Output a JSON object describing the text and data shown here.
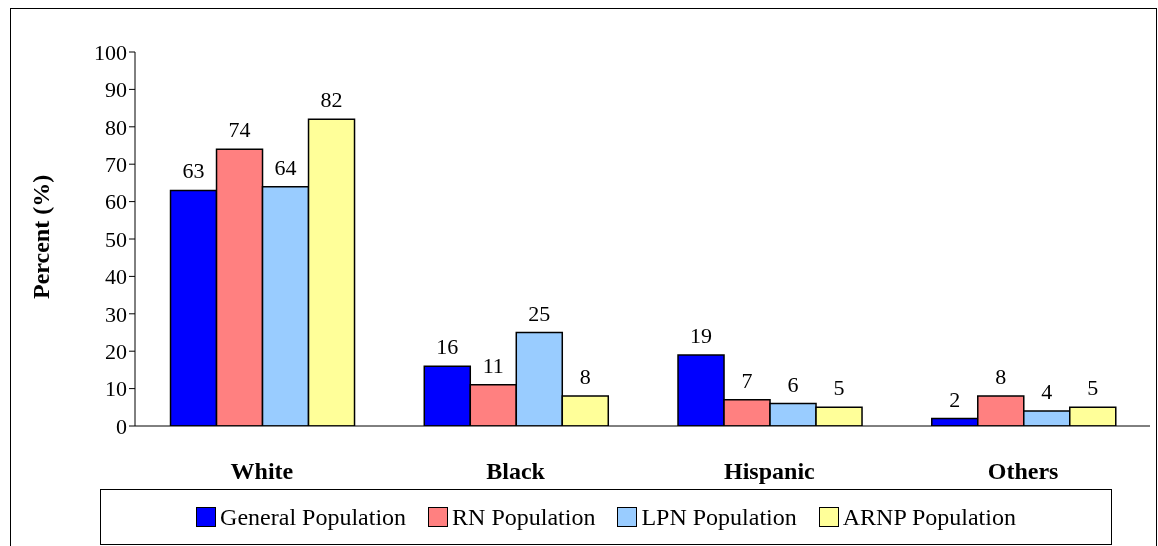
{
  "chart_data": {
    "type": "bar",
    "ylabel": "Percent (%)",
    "categories": [
      "White",
      "Black",
      "Hispanic",
      "Others"
    ],
    "series": [
      {
        "name": "General Population",
        "color": "#0000ff",
        "values": [
          63,
          16,
          19,
          2
        ]
      },
      {
        "name": "RN Population",
        "color": "#ff8080",
        "values": [
          74,
          11,
          7,
          8
        ]
      },
      {
        "name": "LPN Population",
        "color": "#99ccff",
        "values": [
          64,
          25,
          6,
          4
        ]
      },
      {
        "name": "ARNP Population",
        "color": "#ffff99",
        "values": [
          82,
          8,
          5,
          5
        ]
      }
    ],
    "ylim": [
      0,
      100
    ],
    "yticks": [
      0,
      10,
      20,
      30,
      40,
      50,
      60,
      70,
      80,
      90,
      100
    ],
    "data_labels": true,
    "grid": false,
    "legend": "bottom"
  }
}
